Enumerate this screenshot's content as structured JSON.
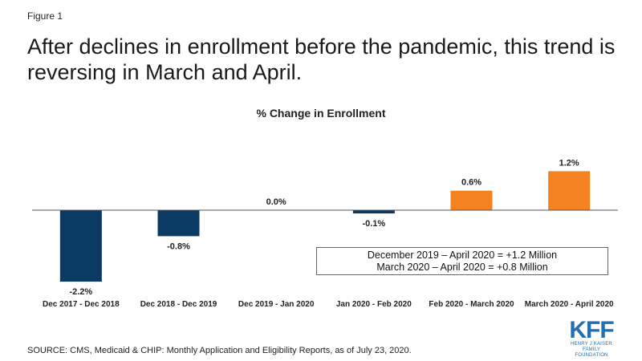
{
  "figure_label": "Figure 1",
  "headline": "After declines in enrollment before the pandemic, this trend is reversing in March and April.",
  "callout": {
    "line1": "December 2019 – April 2020 = +1.2 Million",
    "line2": "March 2020 – April 2020 = +0.8 Million"
  },
  "source": "SOURCE:  CMS, Medicaid & CHIP: Monthly Application and Eligibility Reports, as of July 23, 2020.",
  "logo": {
    "mark": "KFF",
    "line1": "HENRY J KAISER",
    "line2": "FAMILY FOUNDATION"
  },
  "colors": {
    "negative": "#0b3a63",
    "positive": "#f58220",
    "axis": "#555555"
  },
  "chart_data": {
    "type": "bar",
    "title": "% Change in Enrollment",
    "xlabel": "",
    "ylabel": "",
    "categories": [
      "Dec 2017 - Dec 2018",
      "Dec 2018 - Dec 2019",
      "Dec 2019 - Jan 2020",
      "Jan 2020 - Feb 2020",
      "Feb 2020 - March 2020",
      "March 2020 - April 2020"
    ],
    "values": [
      -2.2,
      -0.8,
      0.0,
      -0.1,
      0.6,
      1.2
    ],
    "data_labels": [
      "-2.2%",
      "-0.8%",
      "0.0%",
      "-0.1%",
      "0.6%",
      "1.2%"
    ],
    "ylim": [
      -2.2,
      1.2
    ],
    "grid": false,
    "legend": false
  }
}
